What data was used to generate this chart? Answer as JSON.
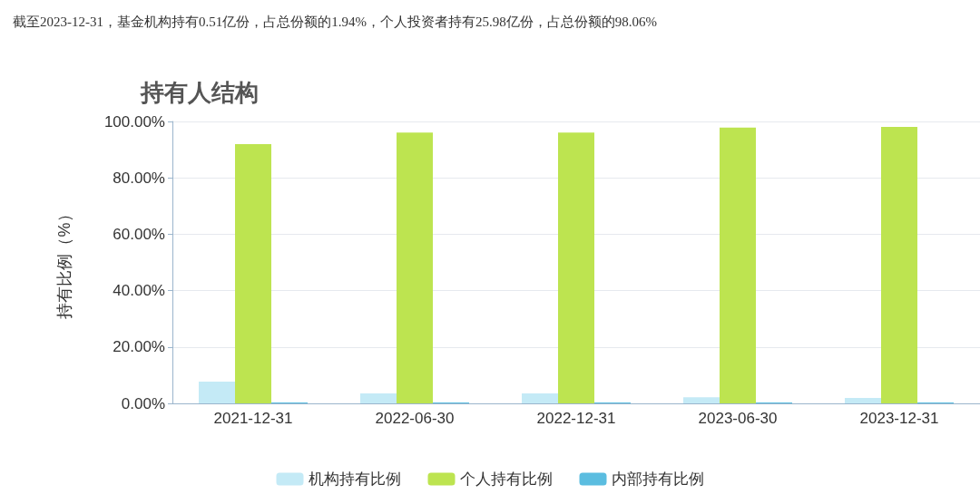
{
  "chart_data": {
    "type": "bar",
    "title": "持有人结构",
    "ylabel": "持有比例（%）",
    "annotations": [
      "截至2023-12-31，基金机构持有0.51亿份，占总份额的1.94%，个人投资者持有25.98亿份，占总份额的98.06%"
    ],
    "categories": [
      "2021-12-31",
      "2022-06-30",
      "2022-12-31",
      "2023-06-30",
      "2023-12-31"
    ],
    "series": [
      {
        "name": "机构持有比例",
        "color": "#c4eaf6",
        "values": [
          7.7,
          3.5,
          3.5,
          2.2,
          1.94
        ]
      },
      {
        "name": "个人持有比例",
        "color": "#bde450",
        "values": [
          92.0,
          96.1,
          96.1,
          97.8,
          98.06
        ]
      },
      {
        "name": "内部持有比例",
        "color": "#5bbde0",
        "values": [
          0.3,
          0.3,
          0.3,
          0.3,
          0.3
        ]
      }
    ],
    "ylim": [
      0,
      100
    ],
    "yticks": [
      {
        "value": 0,
        "label": "0.00%"
      },
      {
        "value": 20,
        "label": "20.00%"
      },
      {
        "value": 40,
        "label": "40.00%"
      },
      {
        "value": 60,
        "label": "60.00%"
      },
      {
        "value": 80,
        "label": "80.00%"
      },
      {
        "value": 100,
        "label": "100.00%"
      }
    ],
    "grid": "y",
    "legend": "bottom"
  }
}
